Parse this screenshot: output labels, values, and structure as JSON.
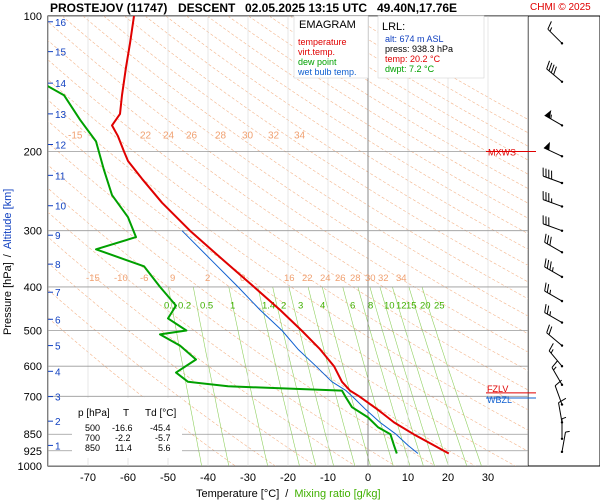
{
  "header": {
    "station": "PROSTEJOV (11747)",
    "mode": "DESCENT",
    "datetime": "02.05.2025 13:15 UTC",
    "location": "49.40N,17.76E",
    "credit": "CHMI © 2025"
  },
  "legend": {
    "title": "EMAGRAM",
    "items": [
      {
        "label": "temperature",
        "color": "#e00000"
      },
      {
        "label": "virt.temp.",
        "color": "#e00000"
      },
      {
        "label": "dew point",
        "color": "#00a000"
      },
      {
        "label": "wet bulb temp.",
        "color": "#1060d0"
      }
    ]
  },
  "lrl": {
    "title": "LRL:",
    "alt": "alt: 674 m ASL",
    "press": "press: 938.3 hPa",
    "temp": "temp: 20.2 °C",
    "dwpt": "dwpt: 7.2 °C"
  },
  "table": {
    "headers": [
      "p [hPa]",
      "T",
      "Td [°C]"
    ],
    "rows": [
      [
        "500",
        "-16.6",
        "-45.4"
      ],
      [
        "700",
        "-2.2",
        "-5.7"
      ],
      [
        "850",
        "11.4",
        "5.6"
      ]
    ]
  },
  "level_marks": [
    {
      "label": "MXWS",
      "p": 200
    },
    {
      "label": "FZLV",
      "p": 688
    },
    {
      "label": "WBZL",
      "p": 706
    }
  ],
  "chart_data": {
    "type": "line",
    "title": "",
    "xlabel": "Temperature [°C]",
    "xlabel_sep": "/",
    "xlabel2": "Mixing ratio [g/kg]",
    "ylabel": "Pressure [hPa]",
    "ylabel_sep": "/",
    "ylabel2": "Altitude [km]",
    "xlim": [
      -80,
      40
    ],
    "ylim": [
      1000,
      100
    ],
    "y_scale": "log",
    "x_ticks": [
      -70,
      -60,
      -50,
      -40,
      -30,
      -20,
      -10,
      0,
      10,
      20,
      30
    ],
    "pressure_ticks": [
      100,
      200,
      300,
      400,
      500,
      600,
      700,
      850,
      925,
      1000
    ],
    "altitude_ticks": [
      {
        "km": "1",
        "p": 900
      },
      {
        "km": "2",
        "p": 795
      },
      {
        "km": "3",
        "p": 701
      },
      {
        "km": "4",
        "p": 616
      },
      {
        "km": "5",
        "p": 540
      },
      {
        "km": "6",
        "p": 472
      },
      {
        "km": "7",
        "p": 411
      },
      {
        "km": "8",
        "p": 356
      },
      {
        "km": "9",
        "p": 307
      },
      {
        "km": "10",
        "p": 264
      },
      {
        "km": "11",
        "p": 226
      },
      {
        "km": "12",
        "p": 193
      },
      {
        "km": "13",
        "p": 165
      },
      {
        "km": "14",
        "p": 141
      },
      {
        "km": "15",
        "p": 120
      },
      {
        "km": "16",
        "p": 103
      }
    ],
    "mixing_ratio_labels_upper": [
      "-15",
      "-10",
      "-6",
      "9",
      "2",
      "0",
      "16",
      "22",
      "24",
      "26",
      "28",
      "30",
      "32",
      "34"
    ],
    "mixing_ratio_labels_lower": [
      "0.1",
      "0.2",
      "0.5",
      "1",
      "1.4",
      "2",
      "3",
      "4",
      "6",
      "8",
      "10",
      "12",
      "15",
      "20",
      "25"
    ],
    "theta_labels": [
      "-15",
      "22",
      "24",
      "26",
      "28",
      "30",
      "32",
      "34"
    ],
    "mixing_ratios_gkg": [
      0.1,
      0.2,
      0.5,
      1,
      1.4,
      2,
      3,
      4,
      6,
      8,
      10,
      12,
      15,
      20,
      25
    ],
    "series": [
      {
        "name": "temperature",
        "color": "#e00000",
        "points": [
          {
            "p": 938,
            "t": 20.2
          },
          {
            "p": 900,
            "t": 16.5
          },
          {
            "p": 850,
            "t": 11.4
          },
          {
            "p": 800,
            "t": 6.5
          },
          {
            "p": 750,
            "t": 2.5
          },
          {
            "p": 700,
            "t": -2.2
          },
          {
            "p": 680,
            "t": -4.5
          },
          {
            "p": 650,
            "t": -6.5
          },
          {
            "p": 600,
            "t": -8.5
          },
          {
            "p": 550,
            "t": -12.0
          },
          {
            "p": 500,
            "t": -16.6
          },
          {
            "p": 450,
            "t": -22.0
          },
          {
            "p": 400,
            "t": -28.5
          },
          {
            "p": 350,
            "t": -36.0
          },
          {
            "p": 300,
            "t": -44.5
          },
          {
            "p": 260,
            "t": -51.5
          },
          {
            "p": 230,
            "t": -56.5
          },
          {
            "p": 210,
            "t": -60.0
          },
          {
            "p": 200,
            "t": -61.0
          },
          {
            "p": 185,
            "t": -62.5
          },
          {
            "p": 175,
            "t": -64.0
          },
          {
            "p": 165,
            "t": -62.0
          },
          {
            "p": 150,
            "t": -61.5
          },
          {
            "p": 130,
            "t": -60.5
          },
          {
            "p": 115,
            "t": -59.5
          },
          {
            "p": 100,
            "t": -58.5
          }
        ]
      },
      {
        "name": "dew point",
        "color": "#00a000",
        "points": [
          {
            "p": 938,
            "t": 7.2
          },
          {
            "p": 900,
            "t": 6.5
          },
          {
            "p": 850,
            "t": 5.6
          },
          {
            "p": 820,
            "t": 2.5
          },
          {
            "p": 780,
            "t": 0.0
          },
          {
            "p": 740,
            "t": -4.0
          },
          {
            "p": 700,
            "t": -5.7
          },
          {
            "p": 680,
            "t": -6.5
          },
          {
            "p": 665,
            "t": -35.0
          },
          {
            "p": 650,
            "t": -45.0
          },
          {
            "p": 620,
            "t": -48.0
          },
          {
            "p": 580,
            "t": -43.0
          },
          {
            "p": 540,
            "t": -47.0
          },
          {
            "p": 510,
            "t": -52.0
          },
          {
            "p": 500,
            "t": -45.4
          },
          {
            "p": 470,
            "t": -50.0
          },
          {
            "p": 440,
            "t": -48.0
          },
          {
            "p": 400,
            "t": -52.0
          },
          {
            "p": 360,
            "t": -56.0
          },
          {
            "p": 330,
            "t": -68.0
          },
          {
            "p": 310,
            "t": -58.0
          },
          {
            "p": 280,
            "t": -60.0
          },
          {
            "p": 250,
            "t": -64.0
          },
          {
            "p": 220,
            "t": -66.0
          },
          {
            "p": 190,
            "t": -68.0
          },
          {
            "p": 170,
            "t": -72.0
          },
          {
            "p": 150,
            "t": -76.0
          },
          {
            "p": 140,
            "t": -82.0
          }
        ]
      },
      {
        "name": "wet bulb temp.",
        "color": "#1060d0",
        "points": [
          {
            "p": 938,
            "t": 12.5
          },
          {
            "p": 900,
            "t": 10.0
          },
          {
            "p": 850,
            "t": 7.0
          },
          {
            "p": 800,
            "t": 3.0
          },
          {
            "p": 750,
            "t": -0.5
          },
          {
            "p": 706,
            "t": -3.5
          },
          {
            "p": 680,
            "t": -5.5
          },
          {
            "p": 650,
            "t": -9.0
          },
          {
            "p": 600,
            "t": -13.0
          },
          {
            "p": 550,
            "t": -17.5
          },
          {
            "p": 500,
            "t": -21.5
          },
          {
            "p": 450,
            "t": -27.0
          },
          {
            "p": 400,
            "t": -32.5
          },
          {
            "p": 350,
            "t": -39.0
          },
          {
            "p": 300,
            "t": -46.5
          }
        ]
      }
    ]
  },
  "wind_barbs": [
    {
      "p": 115,
      "dir": 315,
      "kt": 15
    },
    {
      "p": 140,
      "dir": 310,
      "kt": 40
    },
    {
      "p": 175,
      "dir": 300,
      "kt": 55
    },
    {
      "p": 205,
      "dir": 295,
      "kt": 50
    },
    {
      "p": 235,
      "dir": 290,
      "kt": 40
    },
    {
      "p": 265,
      "dir": 290,
      "kt": 35
    },
    {
      "p": 300,
      "dir": 290,
      "kt": 30
    },
    {
      "p": 335,
      "dir": 300,
      "kt": 30
    },
    {
      "p": 380,
      "dir": 300,
      "kt": 35
    },
    {
      "p": 430,
      "dir": 300,
      "kt": 25
    },
    {
      "p": 480,
      "dir": 300,
      "kt": 25
    },
    {
      "p": 540,
      "dir": 310,
      "kt": 20
    },
    {
      "p": 600,
      "dir": 320,
      "kt": 15
    },
    {
      "p": 660,
      "dir": 330,
      "kt": 15
    },
    {
      "p": 730,
      "dir": 340,
      "kt": 10
    },
    {
      "p": 800,
      "dir": 350,
      "kt": 10
    },
    {
      "p": 870,
      "dir": 0,
      "kt": 5
    },
    {
      "p": 930,
      "dir": 10,
      "kt": 5
    }
  ]
}
